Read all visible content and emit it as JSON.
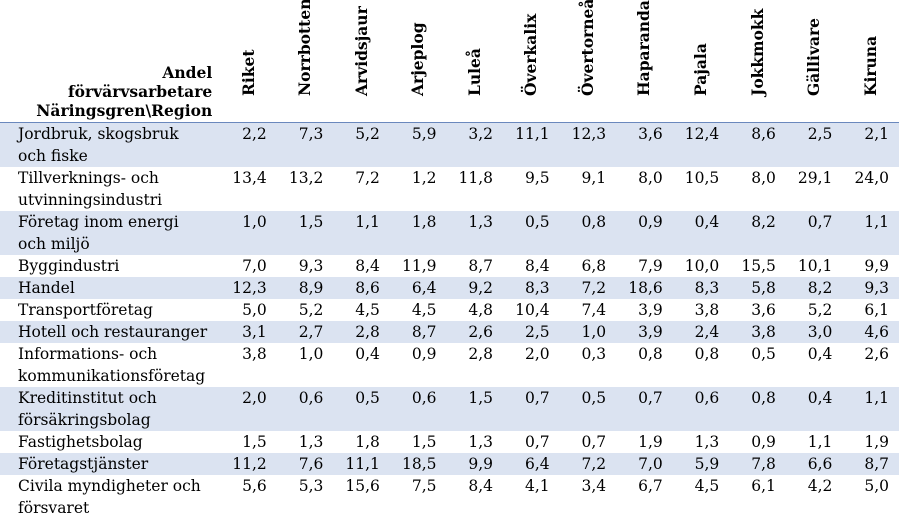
{
  "header": {
    "corner_lines": [
      "Andel",
      "förvärvsarbetare",
      "Näringsgren\\Region"
    ],
    "regions": [
      "Riket",
      "Norrbotten",
      "Arvidsjaur",
      "Arjeplog",
      "Luleå",
      "Överkalix",
      "Övertorneå",
      "Haparanda",
      "Pajala",
      "Jokkmokk",
      "Gällivare",
      "Kiruna"
    ]
  },
  "rows": [
    {
      "label_lines": [
        "Jordbruk, skogsbruk",
        "och fiske"
      ],
      "values": [
        "2,2",
        "7,3",
        "5,2",
        "5,9",
        "3,2",
        "11,1",
        "12,3",
        "3,6",
        "12,4",
        "8,6",
        "2,5",
        "2,1"
      ]
    },
    {
      "label_lines": [
        "Tillverknings- och",
        "utvinningsindustri"
      ],
      "values": [
        "13,4",
        "13,2",
        "7,2",
        "1,2",
        "11,8",
        "9,5",
        "9,1",
        "8,0",
        "10,5",
        "8,0",
        "29,1",
        "24,0"
      ]
    },
    {
      "label_lines": [
        "Företag inom energi",
        "och miljö"
      ],
      "values": [
        "1,0",
        "1,5",
        "1,1",
        "1,8",
        "1,3",
        "0,5",
        "0,8",
        "0,9",
        "0,4",
        "8,2",
        "0,7",
        "1,1"
      ]
    },
    {
      "label_lines": [
        "Byggindustri"
      ],
      "values": [
        "7,0",
        "9,3",
        "8,4",
        "11,9",
        "8,7",
        "8,4",
        "6,8",
        "7,9",
        "10,0",
        "15,5",
        "10,1",
        "9,9"
      ]
    },
    {
      "label_lines": [
        "Handel"
      ],
      "values": [
        "12,3",
        "8,9",
        "8,6",
        "6,4",
        "9,2",
        "8,3",
        "7,2",
        "18,6",
        "8,3",
        "5,8",
        "8,2",
        "9,3"
      ]
    },
    {
      "label_lines": [
        "Transportföretag"
      ],
      "values": [
        "5,0",
        "5,2",
        "4,5",
        "4,5",
        "4,8",
        "10,4",
        "7,4",
        "3,9",
        "3,8",
        "3,6",
        "5,2",
        "6,1"
      ]
    },
    {
      "label_lines": [
        "Hotell och restauranger"
      ],
      "values": [
        "3,1",
        "2,7",
        "2,8",
        "8,7",
        "2,6",
        "2,5",
        "1,0",
        "3,9",
        "2,4",
        "3,8",
        "3,0",
        "4,6"
      ]
    },
    {
      "label_lines": [
        "Informations- och",
        "kommunikationsföretag"
      ],
      "values": [
        "3,8",
        "1,0",
        "0,4",
        "0,9",
        "2,8",
        "2,0",
        "0,3",
        "0,8",
        "0,8",
        "0,5",
        "0,4",
        "2,6"
      ]
    },
    {
      "label_lines": [
        "Kreditinstitut och",
        "försäkringsbolag"
      ],
      "values": [
        "2,0",
        "0,6",
        "0,5",
        "0,6",
        "1,5",
        "0,7",
        "0,5",
        "0,7",
        "0,6",
        "0,8",
        "0,4",
        "1,1"
      ]
    },
    {
      "label_lines": [
        "Fastighetsbolag"
      ],
      "values": [
        "1,5",
        "1,3",
        "1,8",
        "1,5",
        "1,3",
        "0,7",
        "0,7",
        "1,9",
        "1,3",
        "0,9",
        "1,1",
        "1,9"
      ]
    },
    {
      "label_lines": [
        "Företagstjänster"
      ],
      "values": [
        "11,2",
        "7,6",
        "11,1",
        "18,5",
        "9,9",
        "6,4",
        "7,2",
        "7,0",
        "5,9",
        "7,8",
        "6,6",
        "8,7"
      ]
    },
    {
      "label_lines": [
        "Civila myndigheter och",
        "försvaret"
      ],
      "values": [
        "5,6",
        "5,3",
        "15,6",
        "7,5",
        "8,4",
        "4,1",
        "3,4",
        "6,7",
        "4,5",
        "6,1",
        "4,2",
        "5,0"
      ]
    }
  ],
  "colors": {
    "shaded_row": "#dbe3f1",
    "header_rule": "#6a88bd"
  }
}
